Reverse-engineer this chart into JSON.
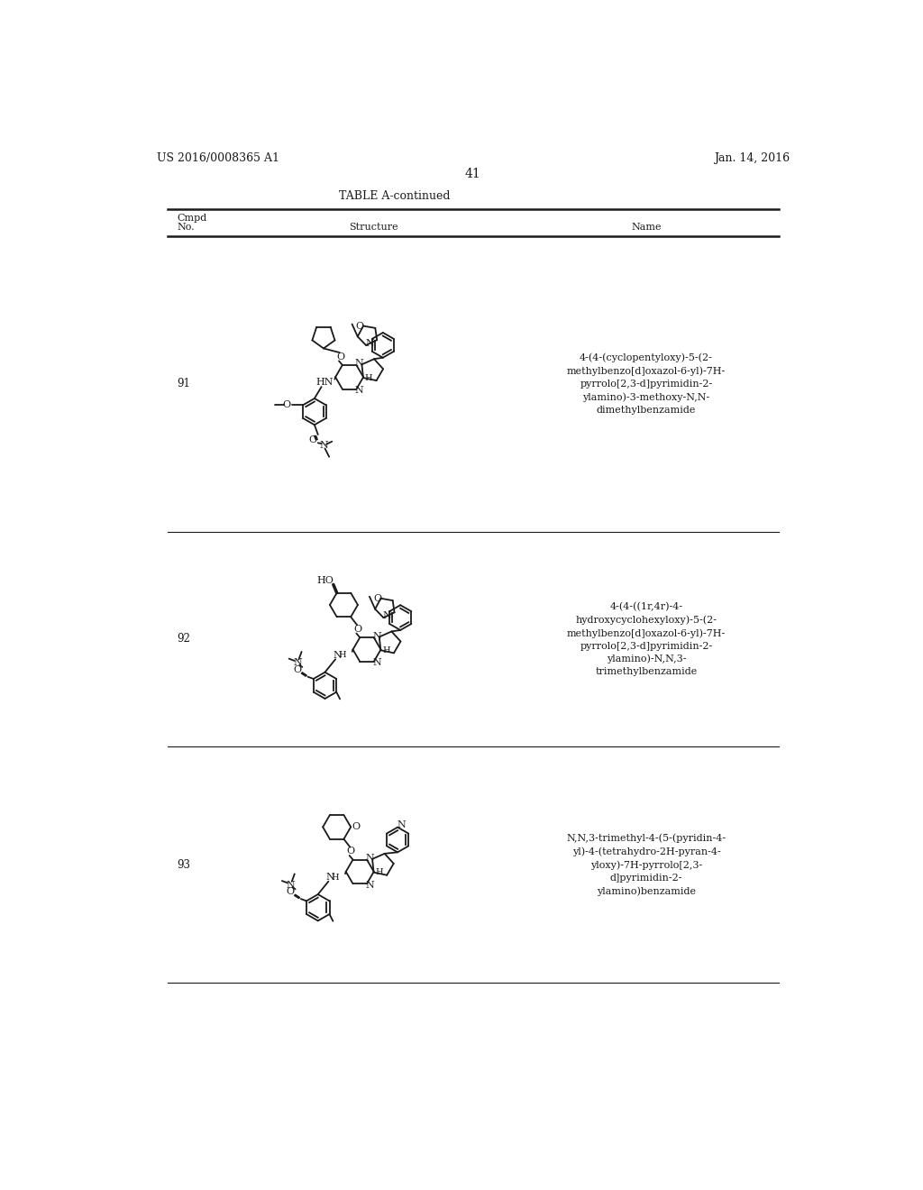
{
  "background_color": "#ffffff",
  "header_left": "US 2016/0008365 A1",
  "header_right": "Jan. 14, 2016",
  "page_number": "41",
  "table_title": "TABLE A-continued",
  "names": [
    "4-(4-(cyclopentyloxy)-5-(2-\nmethylbenzo[d]oxazol-6-yl)-7H-\npyrrolo[2,3-d]pyrimidin-2-\nylamino)-3-methoxy-N,N-\ndimethylbenzamide",
    "4-(4-((1r,4r)-4-\nhydroxycyclohexyloxy)-5-(2-\nmethylbenzo[d]oxazol-6-yl)-7H-\npyrrolo[2,3-d]pyrimidin-2-\nylamino)-N,N,3-\ntrimethylbenzamide",
    "N,N,3-trimethyl-4-(5-(pyridin-4-\nyl)-4-(tetrahydro-2H-pyran-4-\nyloxy)-7H-pyrrolo[2,3-\nd]pyrimidin-2-\nylamino)benzamide"
  ],
  "compound_numbers": [
    "91",
    "92",
    "93"
  ],
  "text_color": "#1a1a1a",
  "line_color": "#1a1a1a"
}
